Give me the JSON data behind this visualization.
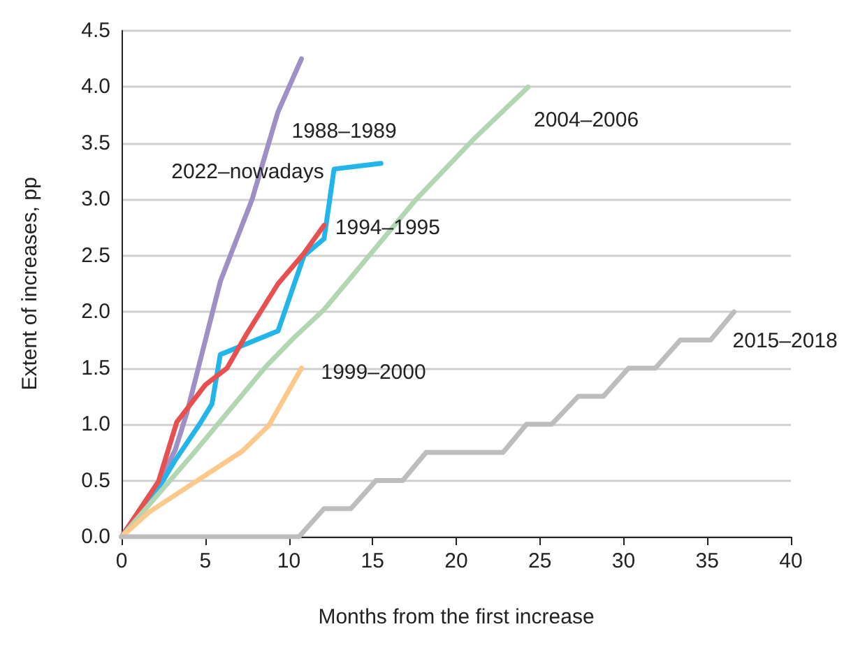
{
  "chart_data": {
    "type": "line",
    "xlabel": "Months from the first increase",
    "ylabel": "Extent of increases, pp",
    "xlim": [
      0,
      40
    ],
    "xticks": [
      0,
      5,
      10,
      15,
      20,
      25,
      30,
      35,
      40
    ],
    "ylim": [
      0,
      4.5
    ],
    "yticks": [
      {
        "value": 0,
        "label": "0.0"
      },
      {
        "value": 0.5,
        "label": "0.5"
      },
      {
        "value": 1,
        "label": "1.0"
      },
      {
        "value": 1.5,
        "label": "1.5"
      },
      {
        "value": 2,
        "label": "2.0"
      },
      {
        "value": 2.5,
        "label": "2.5"
      },
      {
        "value": 3,
        "label": "3.0"
      },
      {
        "value": 3.5,
        "label": "3.5"
      },
      {
        "value": 4,
        "label": "4.0"
      },
      {
        "value": 4.5,
        "label": "4.5"
      }
    ],
    "grid": "y",
    "marker": "none",
    "line_style": "solid",
    "series": [
      {
        "name": "1988–1989",
        "color": "#9e8fc4",
        "x": [
          0,
          2.3,
          3.2,
          3.9,
          5.9,
          7.8,
          9.35,
          10.75
        ],
        "values": [
          0,
          0.51,
          0.77,
          1.1,
          2.27,
          3.0,
          3.78,
          4.25
        ]
      },
      {
        "name": "2022–nowadays",
        "color": "#22b5ea",
        "x": [
          0,
          2.2,
          3.2,
          4.7,
          5.4,
          5.9,
          9.35,
          10.9,
          12.1,
          12.7,
          15.5
        ],
        "values": [
          0,
          0.43,
          0.68,
          1.01,
          1.18,
          1.62,
          1.83,
          2.5,
          2.65,
          3.27,
          3.32
        ]
      },
      {
        "name": "1994–1995",
        "color": "#e8504f",
        "x": [
          0,
          2.2,
          3.3,
          5.0,
          6.3,
          7.5,
          9.35,
          10.9,
          12.1
        ],
        "values": [
          0,
          0.49,
          1.02,
          1.35,
          1.5,
          1.81,
          2.25,
          2.52,
          2.77
        ]
      },
      {
        "name": "2004–2006",
        "color": "#b2d5b2",
        "x": [
          0,
          4.4,
          5.8,
          8.6,
          10.3,
          12.1,
          17.6,
          21.0,
          24.3
        ],
        "values": [
          0,
          0.76,
          1.01,
          1.51,
          1.77,
          2.02,
          3.0,
          3.53,
          4.0
        ]
      },
      {
        "name": "1999–2000",
        "color": "#fdc98a",
        "x": [
          0,
          1.65,
          7.2,
          8.8,
          10.75
        ],
        "values": [
          0,
          0.22,
          0.76,
          0.99,
          1.5
        ]
      },
      {
        "name": "2015–2018",
        "color": "#bdbdbd",
        "x": [
          0,
          10.6,
          12.1,
          13.7,
          15.2,
          16.8,
          18.2,
          22.8,
          24.2,
          25.7,
          27.3,
          28.8,
          30.3,
          31.9,
          33.4,
          35.2,
          36.6
        ],
        "values": [
          0,
          0,
          0.25,
          0.25,
          0.5,
          0.5,
          0.75,
          0.75,
          1.0,
          1.0,
          1.25,
          1.25,
          1.5,
          1.5,
          1.75,
          1.75,
          2.0
        ]
      }
    ]
  }
}
